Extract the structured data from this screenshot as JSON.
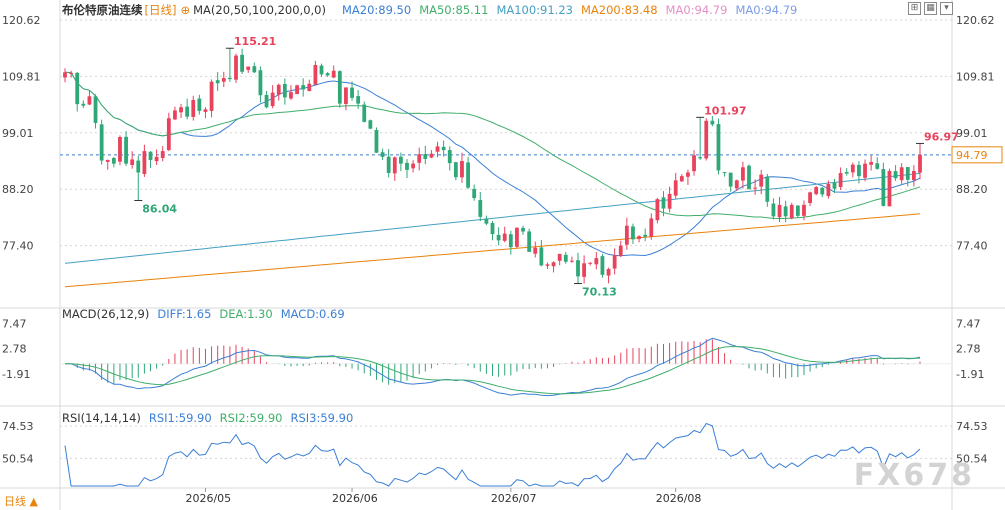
{
  "header": {
    "symbol": "布伦特原油连续",
    "period": "[日线]",
    "ma_label": "MA(20,50,100,200,0,0)",
    "ma_values": [
      {
        "label": "MA20:89.50",
        "color": "#3a7fd5"
      },
      {
        "label": "MA50:85.11",
        "color": "#3fae6a"
      },
      {
        "label": "MA100:91.23",
        "color": "#45a0c4"
      },
      {
        "label": "MA200:83.48",
        "color": "#e8830c"
      },
      {
        "label": "MA0:94.79",
        "color": "#e58fc6"
      },
      {
        "label": "MA0:94.79",
        "color": "#7c9de8"
      }
    ]
  },
  "toolbar": {
    "icons": [
      "grid-icon",
      "layout-icon",
      "collapse-icon"
    ]
  },
  "macd_header": {
    "title": "MACD(26,12,9)",
    "diff": {
      "label": "DIFF:1.65",
      "color": "#3a7fd5"
    },
    "dea": {
      "label": "DEA:1.30",
      "color": "#3fae6a"
    },
    "macd": {
      "label": "MACD:0.69",
      "color": "#3a7fd5"
    }
  },
  "rsi_header": {
    "title": "RSI(14,14,14)",
    "rsi1": {
      "label": "RSI1:59.90",
      "color": "#3a7fd5"
    },
    "rsi2": {
      "label": "RSI2:59.90",
      "color": "#3fae6a"
    },
    "rsi3": {
      "label": "RSI3:59.90",
      "color": "#3a7fd5"
    }
  },
  "bottom_label": "日线 ▲",
  "watermark": "FX678",
  "chart_data": {
    "type": "candlestick",
    "price_axis": {
      "ticks": [
        "120.62",
        "109.81",
        "99.01",
        "88.20",
        "77.40"
      ],
      "range": [
        66.59,
        120.62
      ]
    },
    "current_price": "94.79",
    "annotations": [
      {
        "text": "115.21",
        "value": 115.21,
        "index": 27,
        "kind": "high"
      },
      {
        "text": "86.04",
        "value": 86.04,
        "index": 12,
        "kind": "low"
      },
      {
        "text": "70.13",
        "value": 70.13,
        "index": 84,
        "kind": "low"
      },
      {
        "text": "101.97",
        "value": 101.97,
        "index": 104,
        "kind": "high"
      },
      {
        "text": "96.97",
        "value": 96.97,
        "index": 140,
        "kind": "high"
      }
    ],
    "closes": [
      110.6,
      110.5,
      104.5,
      104.2,
      106.0,
      100.9,
      93.7,
      93.8,
      93.1,
      98.2,
      93.1,
      93.9,
      91.4,
      95.5,
      93.8,
      94.4,
      95.5,
      101.8,
      103.3,
      103.9,
      102.1,
      105.3,
      103.2,
      103.5,
      108.8,
      108.5,
      109.5,
      109.3,
      113.8,
      110.7,
      111.7,
      110.6,
      106.2,
      103.9,
      106.7,
      108.2,
      105.8,
      106.8,
      108.1,
      107.3,
      108.4,
      112.0,
      110.2,
      110.0,
      110.9,
      104.6,
      107.7,
      105.7,
      104.6,
      101.1,
      99.8,
      95.2,
      94.4,
      91.3,
      94.3,
      93.1,
      91.9,
      93.1,
      94.9,
      94.0,
      95.0,
      96.4,
      95.7,
      93.2,
      90.5,
      93.6,
      88.5,
      86.5,
      82.9,
      81.6,
      79.6,
      78.4,
      79.7,
      77.1,
      80.8,
      80.1,
      76.2,
      77.0,
      73.6,
      73.8,
      74.2,
      75.8,
      74.3,
      74.5,
      71.5,
      74.0,
      74.1,
      75.0,
      71.8,
      72.9,
      75.6,
      77.4,
      81.2,
      78.6,
      79.2,
      79.1,
      82.6,
      86.3,
      84.5,
      87.3,
      89.9,
      90.7,
      91.4,
      94.7,
      94.1,
      101.3,
      100.6,
      91.8,
      91.4,
      88.7,
      89.9,
      92.4,
      88.2,
      88.5,
      91.0,
      85.8,
      83.0,
      85.2,
      83.0,
      85.2,
      83.1,
      85.2,
      87.6,
      88.6,
      87.2,
      89.2,
      88.3,
      91.3,
      91.2,
      92.9,
      90.7,
      93.1,
      93.4,
      92.1,
      85.0,
      91.7,
      90.3,
      92.4,
      90.0,
      91.7,
      94.8
    ],
    "x_axis": {
      "ticks": [
        {
          "label": "2026/05",
          "index": 23
        },
        {
          "label": "2026/06",
          "index": 47
        },
        {
          "label": "2026/07",
          "index": 73
        },
        {
          "label": "2026/08",
          "index": 100
        }
      ]
    },
    "moving_averages": [
      {
        "name": "MA20",
        "value": 89.5,
        "color": "#3a7fd5"
      },
      {
        "name": "MA50",
        "value": 85.11,
        "color": "#3fae6a"
      },
      {
        "name": "MA100",
        "value": 91.23,
        "color": "#45a0c4"
      },
      {
        "name": "MA200",
        "value": 83.48,
        "color": "#e8830c"
      }
    ],
    "macd": {
      "ticks": [
        "7.47",
        "2.78",
        "-1.91"
      ],
      "range": [
        -7.5,
        8.5
      ],
      "diff": 1.65,
      "dea": 1.3,
      "macd": 0.69
    },
    "rsi": {
      "ticks": [
        "74.53",
        "50.54"
      ],
      "range": [
        30,
        85
      ],
      "rsi1": 59.9,
      "rsi2": 59.9,
      "rsi3": 59.9
    },
    "colors": {
      "up": "#e8425c",
      "down": "#2fa777",
      "grid": "#d6d6d6",
      "dashed": "#3a7fd5"
    }
  }
}
